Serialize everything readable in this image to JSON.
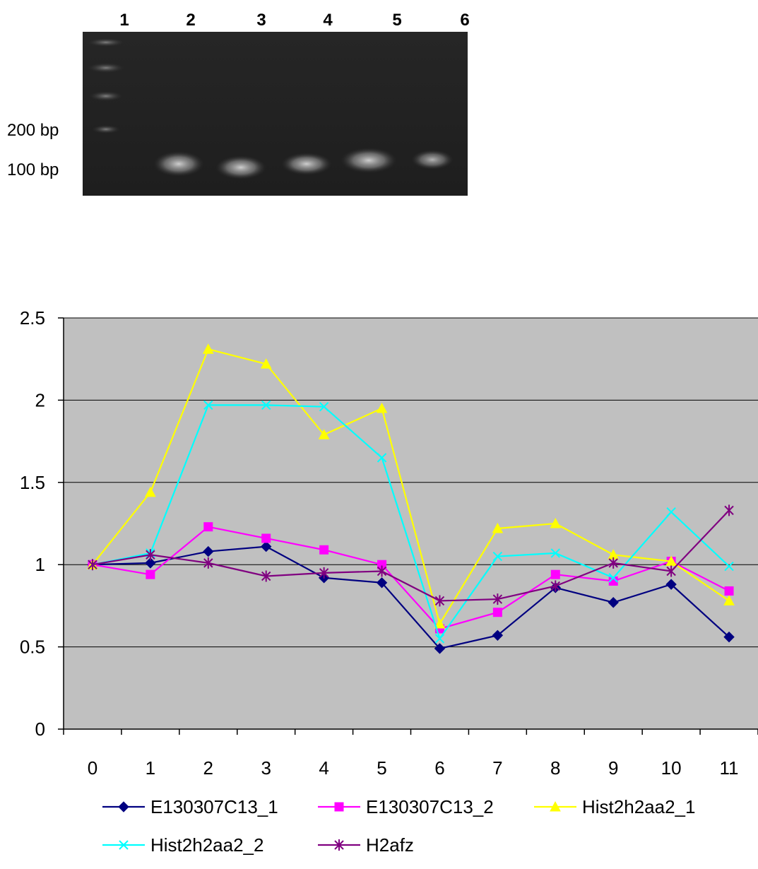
{
  "gel": {
    "lane_labels": [
      "1",
      "2",
      "3",
      "4",
      "5",
      "6"
    ],
    "marker_labels": [
      "200 bp",
      "100 bp"
    ]
  },
  "chart_data": {
    "type": "line",
    "x": [
      0,
      1,
      2,
      3,
      4,
      5,
      6,
      7,
      8,
      9,
      10,
      11
    ],
    "ylim": [
      0,
      2.5
    ],
    "yticks": [
      0,
      0.5,
      1,
      1.5,
      2,
      2.5
    ],
    "ytick_labels": [
      "0",
      "0.5",
      "1",
      "1.5",
      "2",
      "2.5"
    ],
    "xtick_labels": [
      "0",
      "1",
      "2",
      "3",
      "4",
      "5",
      "6",
      "7",
      "8",
      "9",
      "10",
      "11"
    ],
    "grid": "horizontal",
    "plot_background": "#c0c0c0",
    "legend_position": "bottom",
    "series": [
      {
        "name": "E130307C13_1",
        "color": "#000080",
        "marker": "diamond",
        "values": [
          1.0,
          1.01,
          1.08,
          1.11,
          0.92,
          0.89,
          0.49,
          0.57,
          0.86,
          0.77,
          0.88,
          0.56
        ]
      },
      {
        "name": "E130307C13_2",
        "color": "#ff00ff",
        "marker": "square",
        "values": [
          1.0,
          0.94,
          1.23,
          1.16,
          1.09,
          1.0,
          0.61,
          0.71,
          0.94,
          0.9,
          1.02,
          0.84
        ]
      },
      {
        "name": "Hist2h2aa2_1",
        "color": "#ffff00",
        "marker": "triangle",
        "values": [
          1.0,
          1.44,
          2.31,
          2.22,
          1.79,
          1.95,
          0.64,
          1.22,
          1.25,
          1.06,
          1.02,
          0.78
        ]
      },
      {
        "name": "Hist2h2aa2_2",
        "color": "#00ffff",
        "marker": "x",
        "values": [
          1.0,
          1.07,
          1.97,
          1.97,
          1.96,
          1.65,
          0.55,
          1.05,
          1.07,
          0.92,
          1.32,
          0.99
        ]
      },
      {
        "name": "H2afz",
        "color": "#800080",
        "marker": "star",
        "values": [
          1.0,
          1.06,
          1.01,
          0.93,
          0.95,
          0.96,
          0.78,
          0.79,
          0.87,
          1.01,
          0.96,
          1.33
        ]
      }
    ]
  }
}
